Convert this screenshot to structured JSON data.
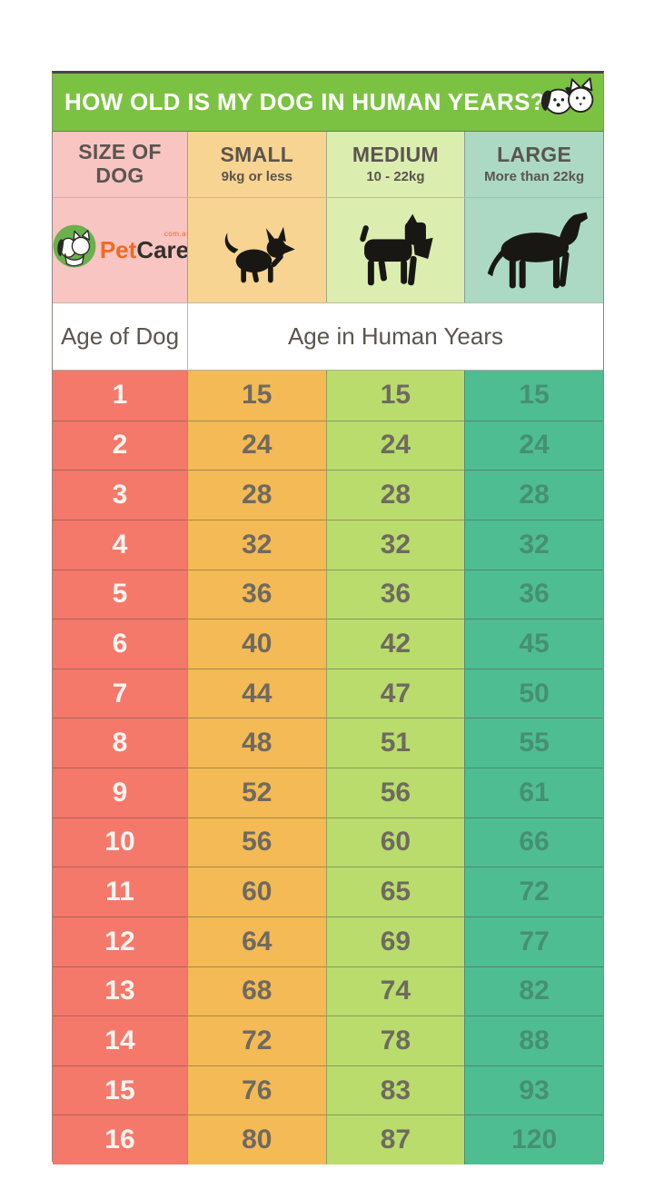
{
  "title": "HOW OLD IS MY DOG IN HUMAN YEARS?",
  "logo": {
    "pet": "Pet",
    "care": "Care",
    "suffix": "com.au"
  },
  "columns": [
    {
      "label": "SIZE OF DOG",
      "sublabel": ""
    },
    {
      "label": "SMALL",
      "sublabel": "9kg or less"
    },
    {
      "label": "MEDIUM",
      "sublabel": "10 - 22kg"
    },
    {
      "label": "LARGE",
      "sublabel": "More than 22kg"
    }
  ],
  "age_header": {
    "left": "Age of Dog",
    "right": "Age in Human Years"
  },
  "chart_data": {
    "type": "table",
    "title": "HOW OLD IS MY DOG IN HUMAN YEARS?",
    "columns": [
      "Age of Dog",
      "Small (9kg or less)",
      "Medium (10 - 22kg)",
      "Large (More than 22kg)"
    ],
    "rows": [
      [
        1,
        15,
        15,
        15
      ],
      [
        2,
        24,
        24,
        24
      ],
      [
        3,
        28,
        28,
        28
      ],
      [
        4,
        32,
        32,
        32
      ],
      [
        5,
        36,
        36,
        36
      ],
      [
        6,
        40,
        42,
        45
      ],
      [
        7,
        44,
        47,
        50
      ],
      [
        8,
        48,
        51,
        55
      ],
      [
        9,
        52,
        56,
        61
      ],
      [
        10,
        56,
        60,
        66
      ],
      [
        11,
        60,
        65,
        72
      ],
      [
        12,
        64,
        69,
        77
      ],
      [
        13,
        68,
        74,
        82
      ],
      [
        14,
        72,
        78,
        88
      ],
      [
        15,
        76,
        83,
        93
      ],
      [
        16,
        80,
        87,
        120
      ]
    ]
  },
  "icons": {
    "mascot": "dog-and-cat-mascot",
    "logo": "petcare-dog-cat-circle",
    "small": "small-dog-silhouette",
    "medium": "schnauzer-silhouette",
    "large": "large-dog-silhouette"
  },
  "colors": {
    "title_bg": "#7cc242",
    "title_text": "#ffffff",
    "header_text": "#5b554e",
    "header_bgs": [
      "#f8c5c2",
      "#f8d492",
      "#dcedb0",
      "#abd9c4"
    ],
    "column_bgs": [
      "#f4796b",
      "#f3ba55",
      "#b9dc6c",
      "#4fbd92"
    ],
    "value_text": "#6f6a60",
    "value_text_large_col": "#45907413",
    "age_text": "#fdf4ef",
    "silhouette": "#191714",
    "logo_pet": "#f26a21",
    "logo_care": "#33302c",
    "logo_circle": "#6ab04c"
  }
}
